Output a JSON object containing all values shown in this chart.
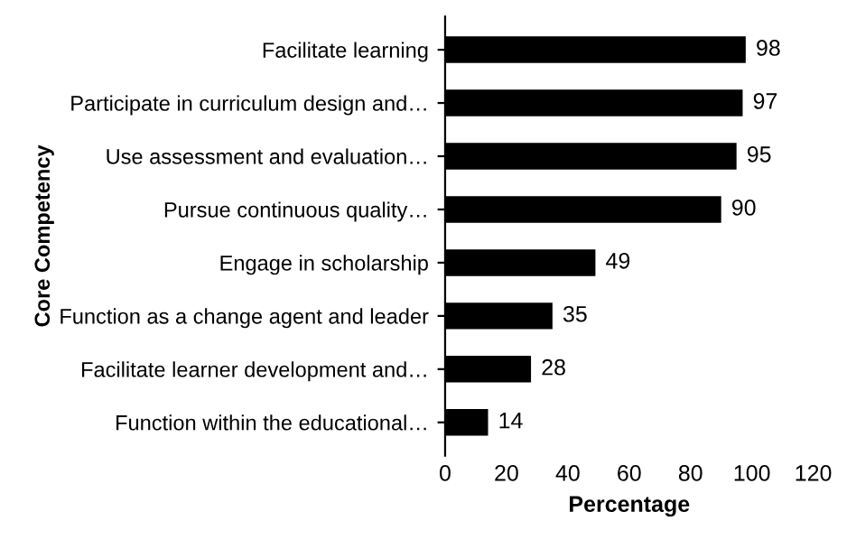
{
  "chart_data": {
    "type": "bar",
    "orientation": "horizontal",
    "categories": [
      "Facilitate learning",
      "Participate in curriculum design and…",
      "Use assessment and evaluation…",
      "Pursue continuous quality…",
      "Engage in scholarship",
      "Function as a change agent and leader",
      "Facilitate learner development and…",
      "Function within the educational…"
    ],
    "values": [
      98,
      97,
      95,
      90,
      49,
      35,
      28,
      14
    ],
    "color": "#000000",
    "data_labels": true,
    "xlabel": "Percentage",
    "ylabel": "Core Competency",
    "xlim": [
      0,
      120
    ],
    "xticks": [
      0,
      20,
      40,
      60,
      80,
      100,
      120
    ],
    "grid": false
  }
}
